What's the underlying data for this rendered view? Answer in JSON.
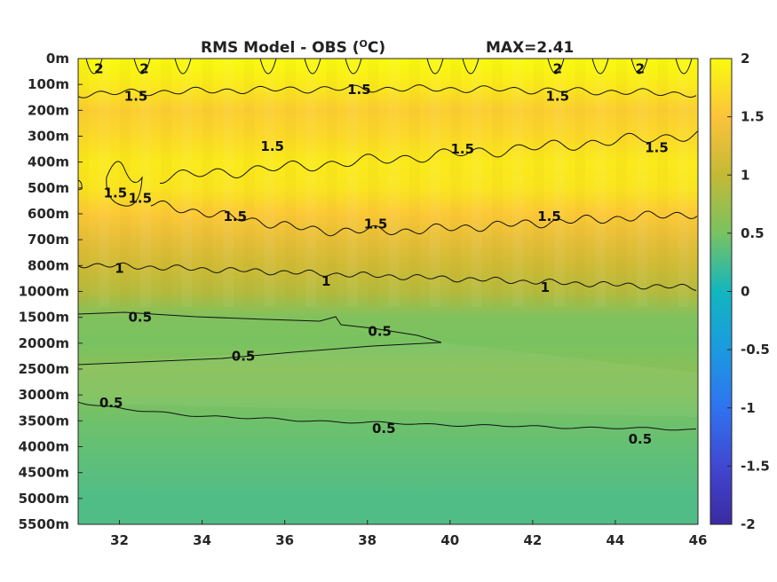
{
  "chart_data": {
    "type": "heatmap",
    "title": "RMS Model - OBS (",
    "title_unit": "C)",
    "title_sup": "O",
    "max_label": "MAX=2.41",
    "x": {
      "ticks": [
        32,
        34,
        36,
        38,
        40,
        42,
        44,
        46
      ],
      "range": [
        31,
        46
      ]
    },
    "y": {
      "ticks": [
        "0m",
        "100m",
        "200m",
        "300m",
        "400m",
        "500m",
        "600m",
        "700m",
        "800m",
        "1000m",
        "1500m",
        "2000m",
        "2500m",
        "3000m",
        "3500m",
        "4000m",
        "4500m",
        "5000m",
        "5500m"
      ]
    },
    "colorbar": {
      "range": [
        -2,
        2
      ],
      "ticks": [
        "2",
        "1.5",
        "1",
        "0.5",
        "0",
        "-0.5",
        "-1",
        "-1.5",
        "-2"
      ]
    },
    "field": {
      "level_values": [
        2.0,
        1.85,
        1.6,
        1.7,
        1.85,
        1.8,
        1.55,
        1.3,
        1.1,
        0.9,
        0.55,
        0.5,
        0.6,
        0.55,
        0.45,
        0.4,
        0.35,
        0.3,
        0.3
      ]
    },
    "contours": [
      {
        "value": 2,
        "labels": [
          {
            "text": "2",
            "x": 31.5,
            "level": 0.4
          },
          {
            "text": "2",
            "x": 32.6,
            "level": 0.4
          },
          {
            "text": "2",
            "x": 42.6,
            "level": 0.4
          },
          {
            "text": "2",
            "x": 44.6,
            "level": 0.4
          }
        ]
      },
      {
        "value": 1.5,
        "labels": [
          {
            "text": "1.5",
            "x": 32.4,
            "level": 1.45
          },
          {
            "text": "1.5",
            "x": 37.8,
            "level": 1.2
          },
          {
            "text": "1.5",
            "x": 42.6,
            "level": 1.45
          },
          {
            "text": "1.5",
            "x": 35.7,
            "level": 3.4
          },
          {
            "text": "1.5",
            "x": 40.3,
            "level": 3.5
          },
          {
            "text": "1.5",
            "x": 45.0,
            "level": 3.45
          },
          {
            "text": "1.5",
            "x": 31.9,
            "level": 5.2
          },
          {
            "text": "1.5",
            "x": 32.5,
            "level": 5.4
          },
          {
            "text": "1.5",
            "x": 34.8,
            "level": 6.1
          },
          {
            "text": "1.5",
            "x": 38.2,
            "level": 6.4
          },
          {
            "text": "1.5",
            "x": 42.4,
            "level": 6.1
          }
        ]
      },
      {
        "value": 1,
        "labels": [
          {
            "text": "1",
            "x": 32.0,
            "level": 8.1
          },
          {
            "text": "1",
            "x": 37.0,
            "level": 8.6
          },
          {
            "text": "1",
            "x": 42.3,
            "level": 8.85
          }
        ]
      },
      {
        "value": 0.5,
        "labels": [
          {
            "text": "0.5",
            "x": 32.5,
            "level": 10.0
          },
          {
            "text": "0.5",
            "x": 38.3,
            "level": 10.55
          },
          {
            "text": "0.5",
            "x": 35.0,
            "level": 11.5
          },
          {
            "text": "0.5",
            "x": 31.8,
            "level": 13.3
          },
          {
            "text": "0.5",
            "x": 38.4,
            "level": 14.3
          },
          {
            "text": "0.5",
            "x": 44.6,
            "level": 14.7
          }
        ]
      }
    ]
  }
}
